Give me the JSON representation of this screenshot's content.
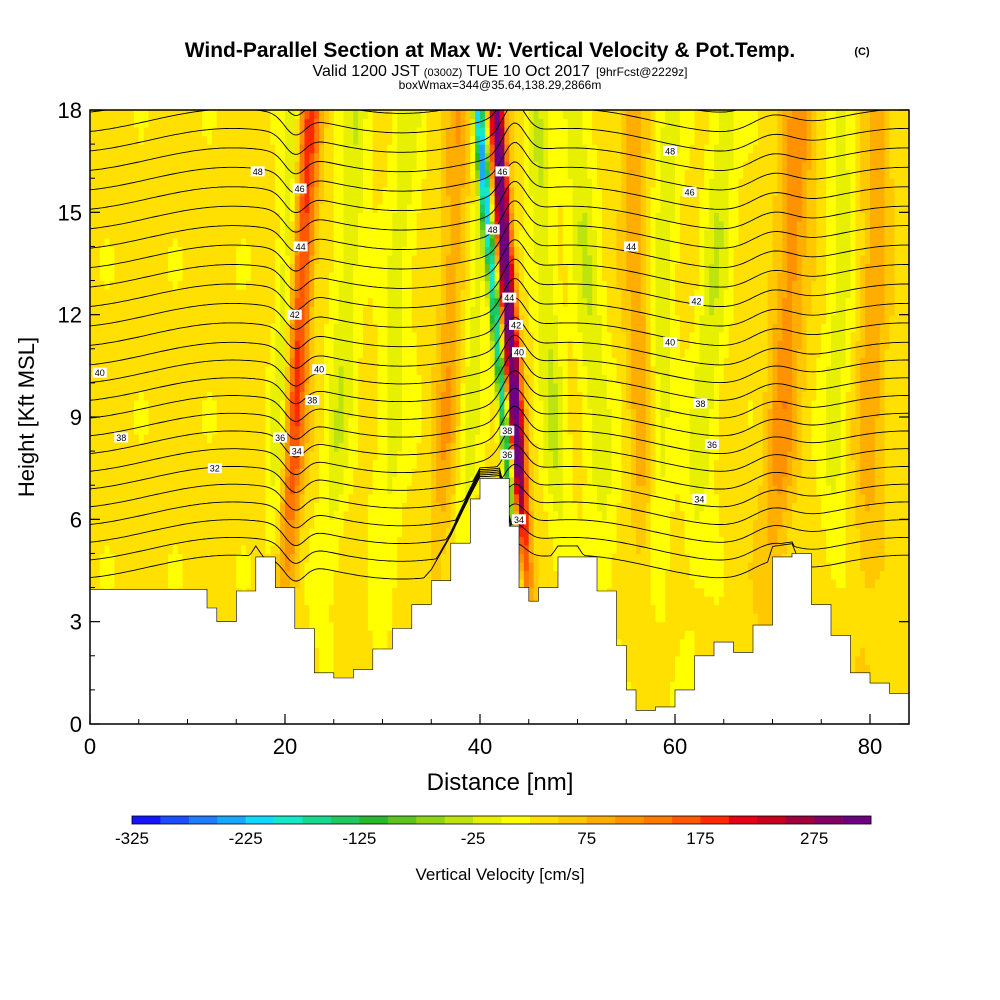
{
  "header": {
    "title_main": "Wind-Parallel Section at Max W: Vertical Velocity & Pot.Temp.",
    "copyright": "(C)",
    "valid_prefix": "Valid 1200 JST",
    "valid_utc": "(0300Z)",
    "valid_date": "TUE 10 Oct 2017",
    "forecast": "[9hrFcst@2229z]",
    "boxwmax": "boxWmax=344@35.64,138.29,2866m"
  },
  "chart_data": {
    "type": "heatmap",
    "title": "Wind-Parallel Section at Max W: Vertical Velocity & Pot.Temp.",
    "xlabel": "Distance [nm]",
    "ylabel": "Height [Kft MSL]",
    "xlim": [
      0,
      84
    ],
    "ylim": [
      0,
      18
    ],
    "x_ticks": [
      "0",
      "20",
      "40",
      "60",
      "80"
    ],
    "y_ticks": [
      "0",
      "3",
      "6",
      "9",
      "12",
      "15",
      "18"
    ],
    "colorbar": {
      "label": "Vertical Velocity [cm/s]",
      "range": [
        -325,
        325
      ],
      "tick_labels": [
        "-325",
        "-225",
        "-125",
        "-25",
        "75",
        "175",
        "275"
      ],
      "colors": [
        "#1414ff",
        "#1e4cff",
        "#1f7cff",
        "#17a8ff",
        "#10d8ff",
        "#14e8c4",
        "#18d890",
        "#20c860",
        "#28b830",
        "#5cc41c",
        "#8cd414",
        "#bde40f",
        "#e6f000",
        "#ffff00",
        "#ffe000",
        "#ffc800",
        "#ffae00",
        "#ff9200",
        "#ff7800",
        "#ff5800",
        "#ff2a00",
        "#e60014",
        "#c8001e",
        "#a0003c",
        "#820064",
        "#6e0082"
      ]
    },
    "terrain_kft": [
      [
        0,
        3.95
      ],
      [
        4,
        3.95
      ],
      [
        8,
        3.95
      ],
      [
        12,
        3.4
      ],
      [
        13,
        3.0
      ],
      [
        15,
        3.9
      ],
      [
        17,
        4.9
      ],
      [
        19,
        4.0
      ],
      [
        21,
        2.8
      ],
      [
        23,
        1.5
      ],
      [
        25,
        1.35
      ],
      [
        27,
        1.6
      ],
      [
        29,
        2.2
      ],
      [
        31,
        2.8
      ],
      [
        33,
        3.5
      ],
      [
        35,
        4.2
      ],
      [
        37,
        5.3
      ],
      [
        39,
        6.6
      ],
      [
        40,
        7.2
      ],
      [
        42,
        7.2
      ],
      [
        43,
        5.8
      ],
      [
        44,
        4.0
      ],
      [
        45,
        3.6
      ],
      [
        46,
        4.0
      ],
      [
        48,
        4.9
      ],
      [
        50,
        4.9
      ],
      [
        52,
        3.9
      ],
      [
        54,
        2.3
      ],
      [
        55,
        1.0
      ],
      [
        56,
        0.4
      ],
      [
        58,
        0.5
      ],
      [
        60,
        1.0
      ],
      [
        62,
        2.0
      ],
      [
        64,
        2.4
      ],
      [
        66,
        2.1
      ],
      [
        68,
        2.9
      ],
      [
        70,
        4.9
      ],
      [
        72,
        5.0
      ],
      [
        74,
        3.5
      ],
      [
        76,
        2.6
      ],
      [
        78,
        1.5
      ],
      [
        80,
        1.2
      ],
      [
        82,
        0.9
      ],
      [
        84,
        0.8
      ]
    ],
    "w_cores": [
      {
        "x": 21.0,
        "w": 150,
        "width_nm": 1.1,
        "tilt": 0.18
      },
      {
        "x": 19.5,
        "w": -60,
        "width_nm": 1.0,
        "tilt": 0.15
      },
      {
        "x": 25.5,
        "w": -55,
        "width_nm": 1.4,
        "tilt": 0.22
      },
      {
        "x": 31.0,
        "w": -45,
        "width_nm": 1.6,
        "tilt": 0.18
      },
      {
        "x": 36.5,
        "w": 60,
        "width_nm": 1.2,
        "tilt": 0.15
      },
      {
        "x": 39.0,
        "w": -50,
        "width_nm": 1.0,
        "tilt": 0.2
      },
      {
        "x": 43.6,
        "w": 320,
        "width_nm": 0.8,
        "tilt": -0.22
      },
      {
        "x": 42.5,
        "w": -230,
        "width_nm": 0.55,
        "tilt": -0.3
      },
      {
        "x": 47.5,
        "w": -60,
        "width_nm": 1.3,
        "tilt": -0.2
      },
      {
        "x": 52.0,
        "w": -55,
        "width_nm": 1.5,
        "tilt": -0.25
      },
      {
        "x": 56.5,
        "w": 60,
        "width_nm": 1.2,
        "tilt": -0.1
      },
      {
        "x": 58.5,
        "w": -50,
        "width_nm": 1.3,
        "tilt": 0.1
      },
      {
        "x": 63.0,
        "w": -55,
        "width_nm": 1.5,
        "tilt": 0.25
      },
      {
        "x": 71.0,
        "w": 80,
        "width_nm": 1.6,
        "tilt": 0.2
      },
      {
        "x": 76.5,
        "w": -45,
        "width_nm": 1.4,
        "tilt": 0.1
      },
      {
        "x": 80.0,
        "w": 60,
        "width_nm": 1.4,
        "tilt": 0.1
      }
    ],
    "theta_contours": {
      "count": 26,
      "labels": [
        {
          "x": 17.2,
          "y": 16.2,
          "text": "48"
        },
        {
          "x": 21.5,
          "y": 15.7,
          "text": "46"
        },
        {
          "x": 21.6,
          "y": 14.0,
          "text": "44"
        },
        {
          "x": 21.0,
          "y": 12.0,
          "text": "42"
        },
        {
          "x": 23.5,
          "y": 10.4,
          "text": "40"
        },
        {
          "x": 1.0,
          "y": 10.3,
          "text": "40"
        },
        {
          "x": 22.8,
          "y": 9.5,
          "text": "38"
        },
        {
          "x": 3.2,
          "y": 8.4,
          "text": "38"
        },
        {
          "x": 19.5,
          "y": 8.4,
          "text": "36"
        },
        {
          "x": 21.2,
          "y": 8.0,
          "text": "34"
        },
        {
          "x": 12.8,
          "y": 7.5,
          "text": "32"
        },
        {
          "x": 42.3,
          "y": 16.2,
          "text": "46"
        },
        {
          "x": 41.3,
          "y": 14.5,
          "text": "48"
        },
        {
          "x": 43.0,
          "y": 12.5,
          "text": "44"
        },
        {
          "x": 43.7,
          "y": 11.7,
          "text": "42"
        },
        {
          "x": 44.0,
          "y": 10.9,
          "text": "40"
        },
        {
          "x": 42.8,
          "y": 8.6,
          "text": "38"
        },
        {
          "x": 42.8,
          "y": 7.9,
          "text": "36"
        },
        {
          "x": 44.0,
          "y": 6.0,
          "text": "34"
        },
        {
          "x": 59.5,
          "y": 16.8,
          "text": "48"
        },
        {
          "x": 61.5,
          "y": 15.6,
          "text": "46"
        },
        {
          "x": 55.5,
          "y": 14.0,
          "text": "44"
        },
        {
          "x": 62.2,
          "y": 12.4,
          "text": "42"
        },
        {
          "x": 59.5,
          "y": 11.2,
          "text": "40"
        },
        {
          "x": 62.6,
          "y": 9.4,
          "text": "38"
        },
        {
          "x": 63.8,
          "y": 8.2,
          "text": "36"
        },
        {
          "x": 62.5,
          "y": 6.6,
          "text": "34"
        }
      ]
    }
  }
}
